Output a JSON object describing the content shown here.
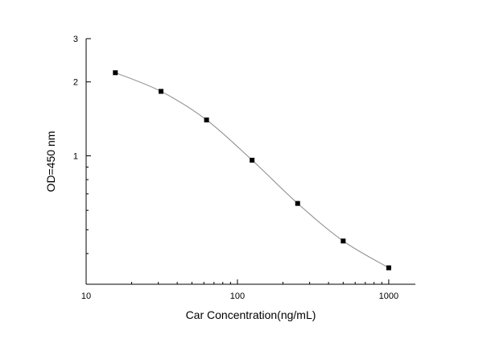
{
  "chart_data": {
    "type": "scatter",
    "title": "",
    "xlabel": "Car  Concentration(ng/mL)",
    "ylabel": "OD=450 nm",
    "x_scale": "log",
    "y_scale": "log",
    "xlim": [
      10,
      1500
    ],
    "ylim": [
      0.3,
      3
    ],
    "x_ticks": [
      10,
      100,
      1000
    ],
    "x_tick_labels": [
      "10",
      "100",
      "1000"
    ],
    "y_ticks": [
      1,
      2,
      3
    ],
    "y_tick_labels": [
      "1",
      "2",
      "3"
    ],
    "grid": false,
    "legend": false,
    "series": [
      {
        "x": [
          15.6,
          31.25,
          62.5,
          125,
          250,
          500,
          1000
        ],
        "y": [
          2.18,
          1.83,
          1.4,
          0.96,
          0.64,
          0.45,
          0.35
        ],
        "marker": "square",
        "line_color": "#8a8a8a",
        "marker_color": "#000000"
      }
    ]
  }
}
